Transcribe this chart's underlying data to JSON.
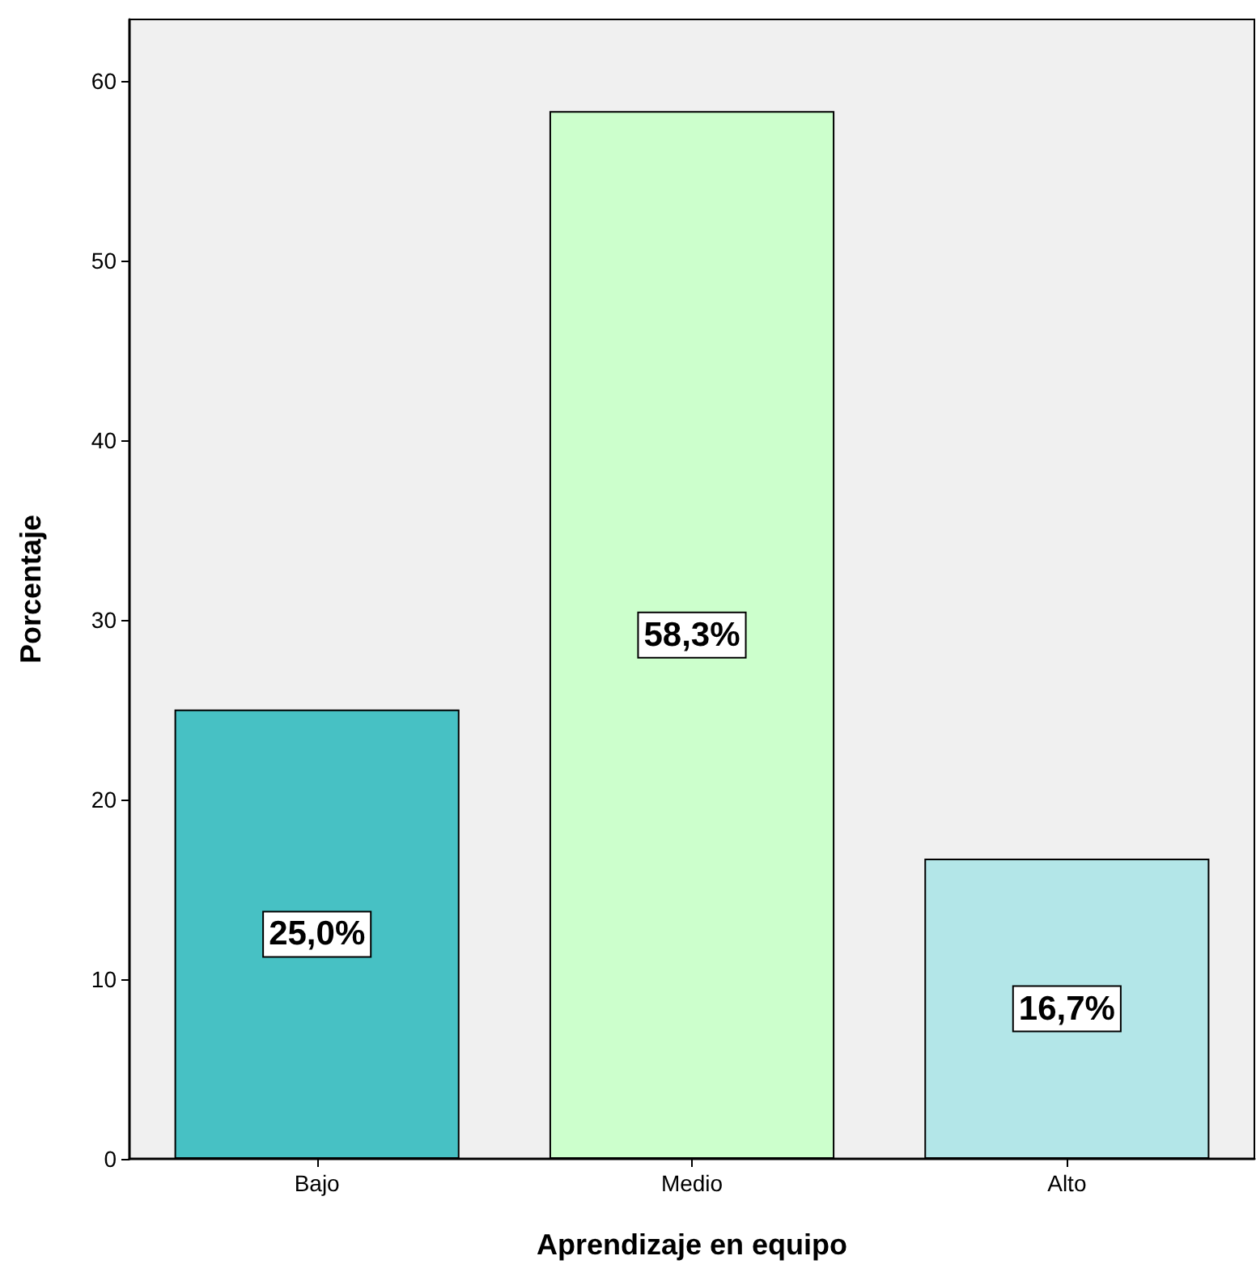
{
  "chart_data": {
    "type": "bar",
    "xlabel": "Aprendizaje en equipo",
    "ylabel": "Porcentaje",
    "categories": [
      "Bajo",
      "Medio",
      "Alto"
    ],
    "values": [
      25.0,
      58.3,
      16.7
    ],
    "colors": [
      "#47c1c4",
      "#ccffcc",
      "#b3e6e8"
    ],
    "value_labels": [
      "25,0%",
      "58,3%",
      "16,7%"
    ],
    "ylim": [
      0,
      63.4
    ],
    "yticks": [
      0,
      10,
      20,
      30,
      40,
      50,
      60
    ],
    "grid": false
  }
}
